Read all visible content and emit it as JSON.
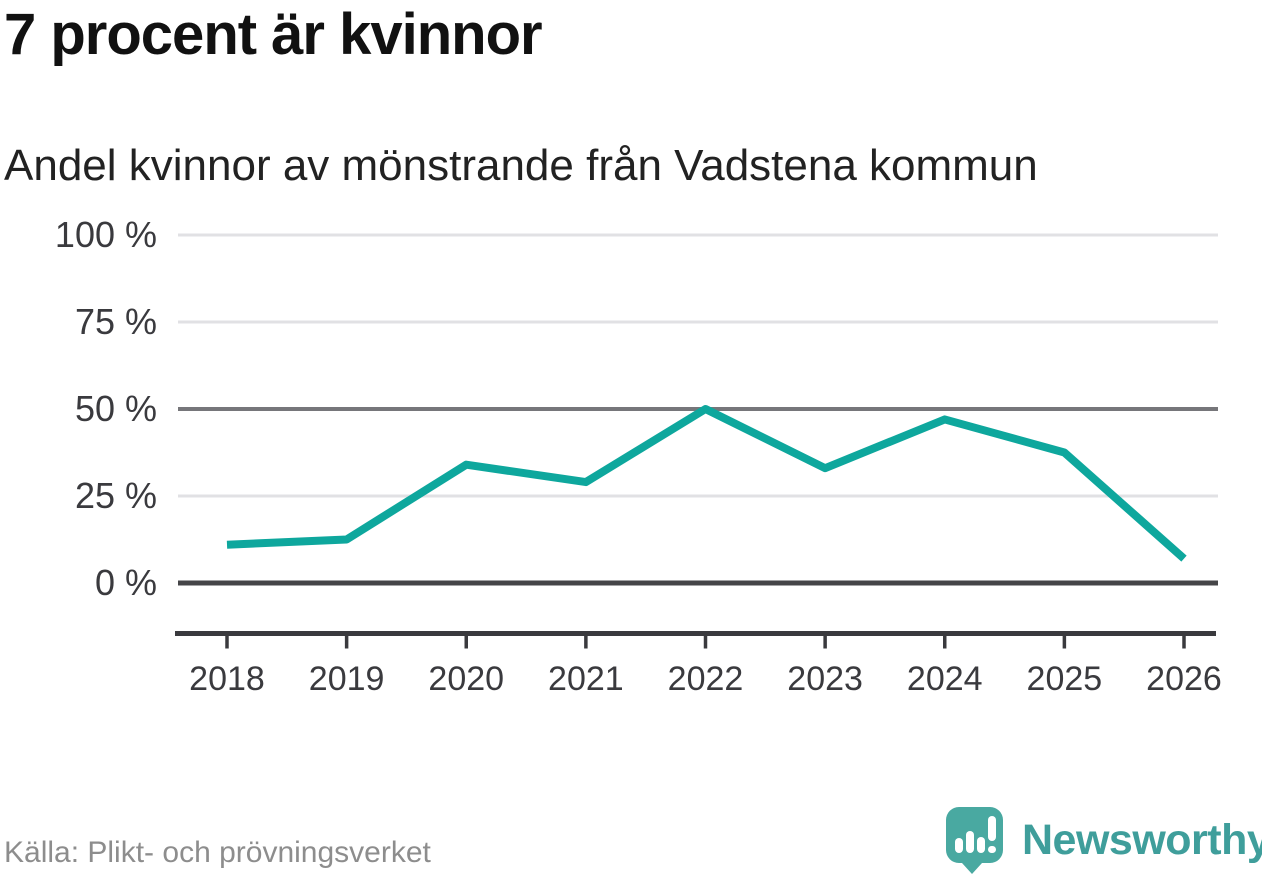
{
  "chart_data": {
    "type": "line",
    "title": "7 procent är kvinnor",
    "subtitle": "Andel kvinnor av mönstrande från Vadstena kommun",
    "x": [
      "2018",
      "2019",
      "2020",
      "2021",
      "2022",
      "2023",
      "2024",
      "2025",
      "2026"
    ],
    "series": [
      {
        "name": "Andel kvinnor av mönstrande",
        "color": "#0ea79d",
        "values": [
          11,
          12.5,
          34,
          29,
          50,
          33,
          47,
          37.5,
          7
        ]
      }
    ],
    "unit": "%",
    "xlabel": "",
    "ylabel": "",
    "ylim": [
      0,
      100
    ],
    "yticks": [
      {
        "value": 100,
        "label": "100 %",
        "style": "light"
      },
      {
        "value": 75,
        "label": "75 %",
        "style": "light"
      },
      {
        "value": 50,
        "label": "50 %",
        "style": "strong"
      },
      {
        "value": 25,
        "label": "25 %",
        "style": "light"
      },
      {
        "value": 0,
        "label": "0 %",
        "style": "zero"
      }
    ],
    "grid": "horizontal",
    "legend": "none"
  },
  "footer": {
    "source": "Källa: Plikt- och prövningsverket",
    "brand": "Newsworthy",
    "brand_icon": "bar-chart-speech-bubble-icon"
  },
  "colors": {
    "line": "#0ea79d",
    "grid_light": "#e1e1e4",
    "grid_strong": "#76767a",
    "grid_zero": "#454548",
    "axis": "#3a3a3e",
    "tick_text": "#3a3a3e",
    "title_text": "#111111",
    "subtitle_text": "#222222",
    "source_text": "#8d8d8d",
    "brand_teal": "#3f9e9b",
    "logo_fill": "#49a9a1"
  }
}
